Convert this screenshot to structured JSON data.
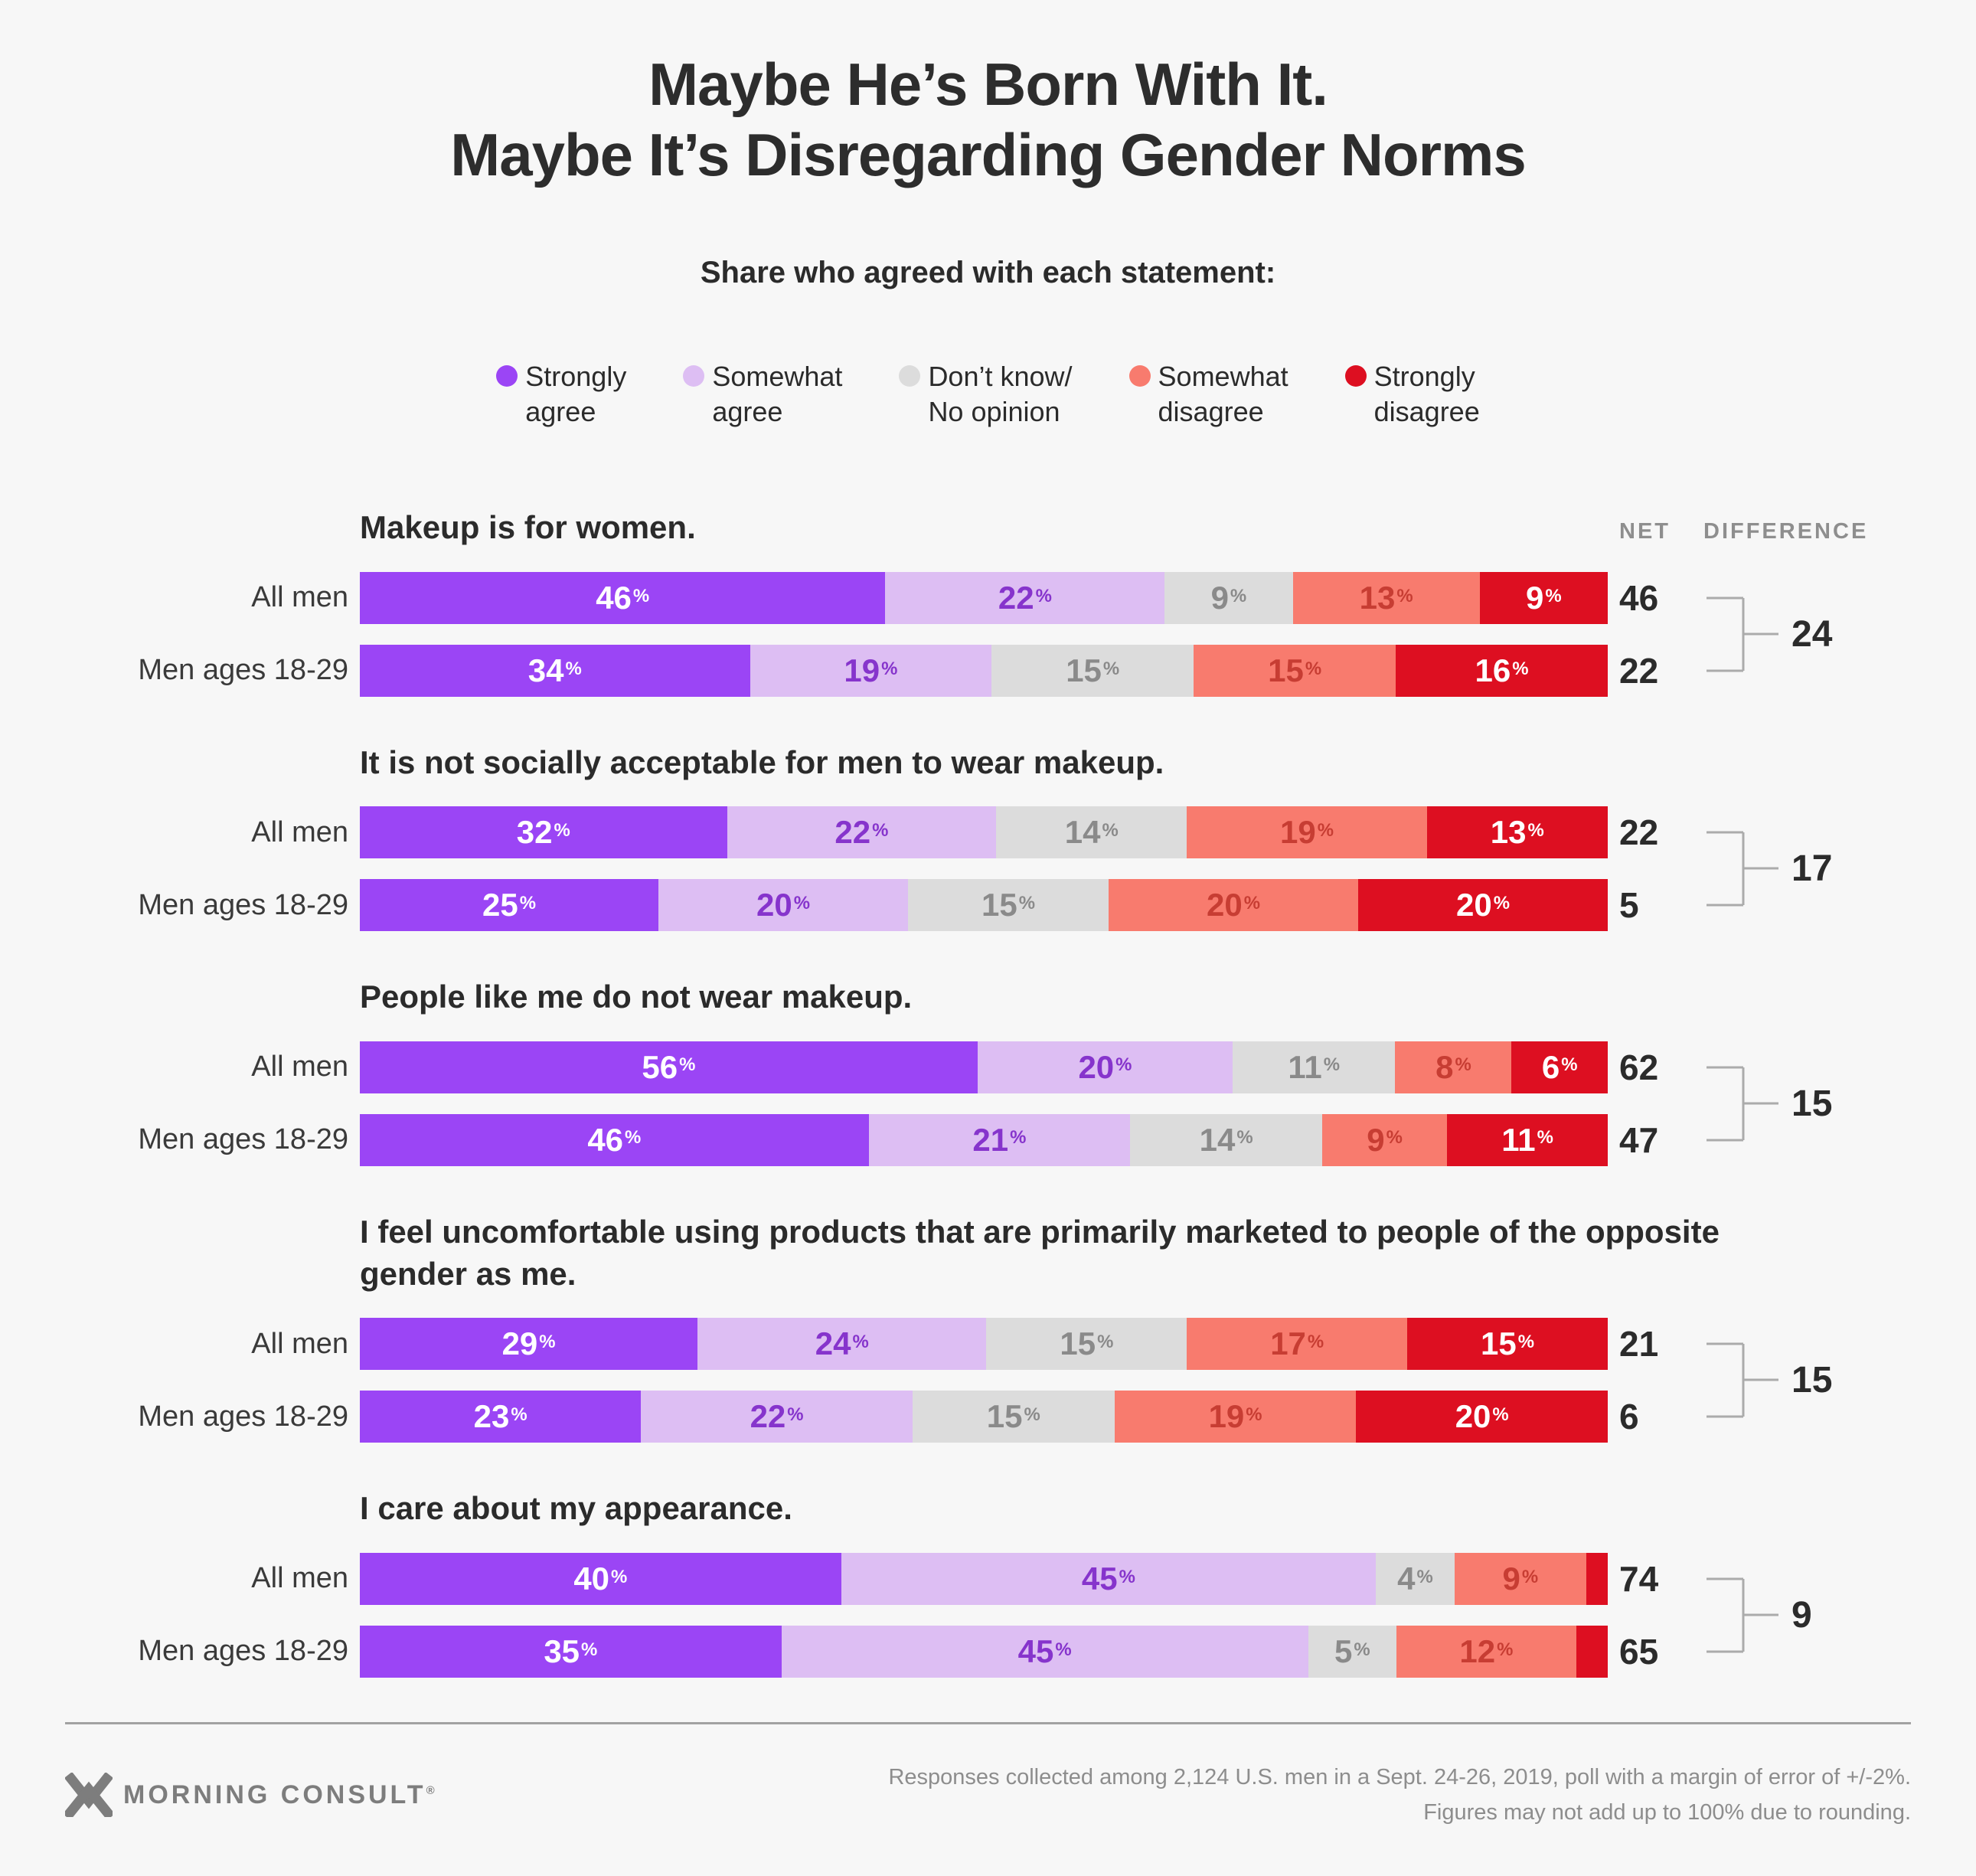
{
  "title": {
    "line1": "Maybe He’s Born With It.",
    "line2": "Maybe It’s Disregarding Gender Norms"
  },
  "subtitle": "Share who agreed with each statement:",
  "colors": {
    "background": "#f7f7f7",
    "strongly_agree": "#9b45f5",
    "somewhat_agree": "#ddbef3",
    "dont_know": "#dcdcdc",
    "somewhat_disagree": "#f87b6e",
    "strongly_disagree": "#dd0f21",
    "bracket_line": "#ababab"
  },
  "legend": [
    {
      "line1": "Strongly",
      "line2": "agree",
      "color": "#9b45f5"
    },
    {
      "line1": "Somewhat",
      "line2": "agree",
      "color": "#ddbef3"
    },
    {
      "line1": "Don’t know/",
      "line2": "No opinion",
      "color": "#dcdcdc"
    },
    {
      "line1": "Somewhat",
      "line2": "disagree",
      "color": "#f87b6e"
    },
    {
      "line1": "Strongly",
      "line2": "disagree",
      "color": "#dd0f21"
    }
  ],
  "net_header": "NET",
  "difference_header": "DIFFERENCE",
  "chart_data": {
    "type": "bar",
    "stacked": true,
    "orientation": "horizontal",
    "unit": "%",
    "categories": [
      "Strongly agree",
      "Somewhat agree",
      "Don’t know/No opinion",
      "Somewhat disagree",
      "Strongly disagree"
    ],
    "segment_colors": [
      "#9b45f5",
      "#ddbef3",
      "#dcdcdc",
      "#f87b6e",
      "#dd0f21"
    ],
    "segment_text_colors": [
      "#ffffff",
      "#8634cc",
      "#8a8a8a",
      "#c73d33",
      "#ffffff"
    ],
    "min_label_value": 4,
    "groups": [
      {
        "statement": "Makeup is for women.",
        "rows": [
          {
            "label": "All men",
            "values": [
              46,
              22,
              9,
              13,
              9
            ],
            "net": 46
          },
          {
            "label": "Men ages 18-29",
            "values": [
              34,
              19,
              15,
              15,
              16
            ],
            "net": 22
          }
        ],
        "difference": 24
      },
      {
        "statement": "It is not socially acceptable for men to wear makeup.",
        "rows": [
          {
            "label": "All men",
            "values": [
              32,
              22,
              14,
              19,
              13
            ],
            "net": 22
          },
          {
            "label": "Men ages 18-29",
            "values": [
              25,
              20,
              15,
              20,
              20
            ],
            "net": 5
          }
        ],
        "difference": 17
      },
      {
        "statement": "People like me do not wear makeup.",
        "rows": [
          {
            "label": "All men",
            "values": [
              56,
              20,
              11,
              8,
              6
            ],
            "net": 62
          },
          {
            "label": "Men ages 18-29",
            "values": [
              46,
              21,
              14,
              9,
              11
            ],
            "net": 47
          }
        ],
        "difference": 15
      },
      {
        "statement": "I feel uncomfortable using products that are primarily marketed to people of the opposite gender as me.",
        "rows": [
          {
            "label": "All men",
            "values": [
              29,
              24,
              15,
              17,
              15
            ],
            "net": 21
          },
          {
            "label": "Men ages 18-29",
            "values": [
              23,
              22,
              15,
              19,
              20
            ],
            "net": 6
          }
        ],
        "difference": 15
      },
      {
        "statement": "I care about my appearance.",
        "rows": [
          {
            "label": "All men",
            "values": [
              40,
              45,
              4,
              9,
              2
            ],
            "net": 74
          },
          {
            "label": "Men ages 18-29",
            "values": [
              35,
              45,
              5,
              12,
              3
            ],
            "net": 65
          }
        ],
        "difference": 9
      }
    ]
  },
  "footer": {
    "logo_text": "MORNING CONSULT",
    "logo_reg": "®",
    "source_line1": "Responses collected among 2,124 U.S. men in a Sept. 24-26, 2019, poll with a margin of error of +/-2%.",
    "source_line2": "Figures may not add up to 100% due to rounding."
  }
}
